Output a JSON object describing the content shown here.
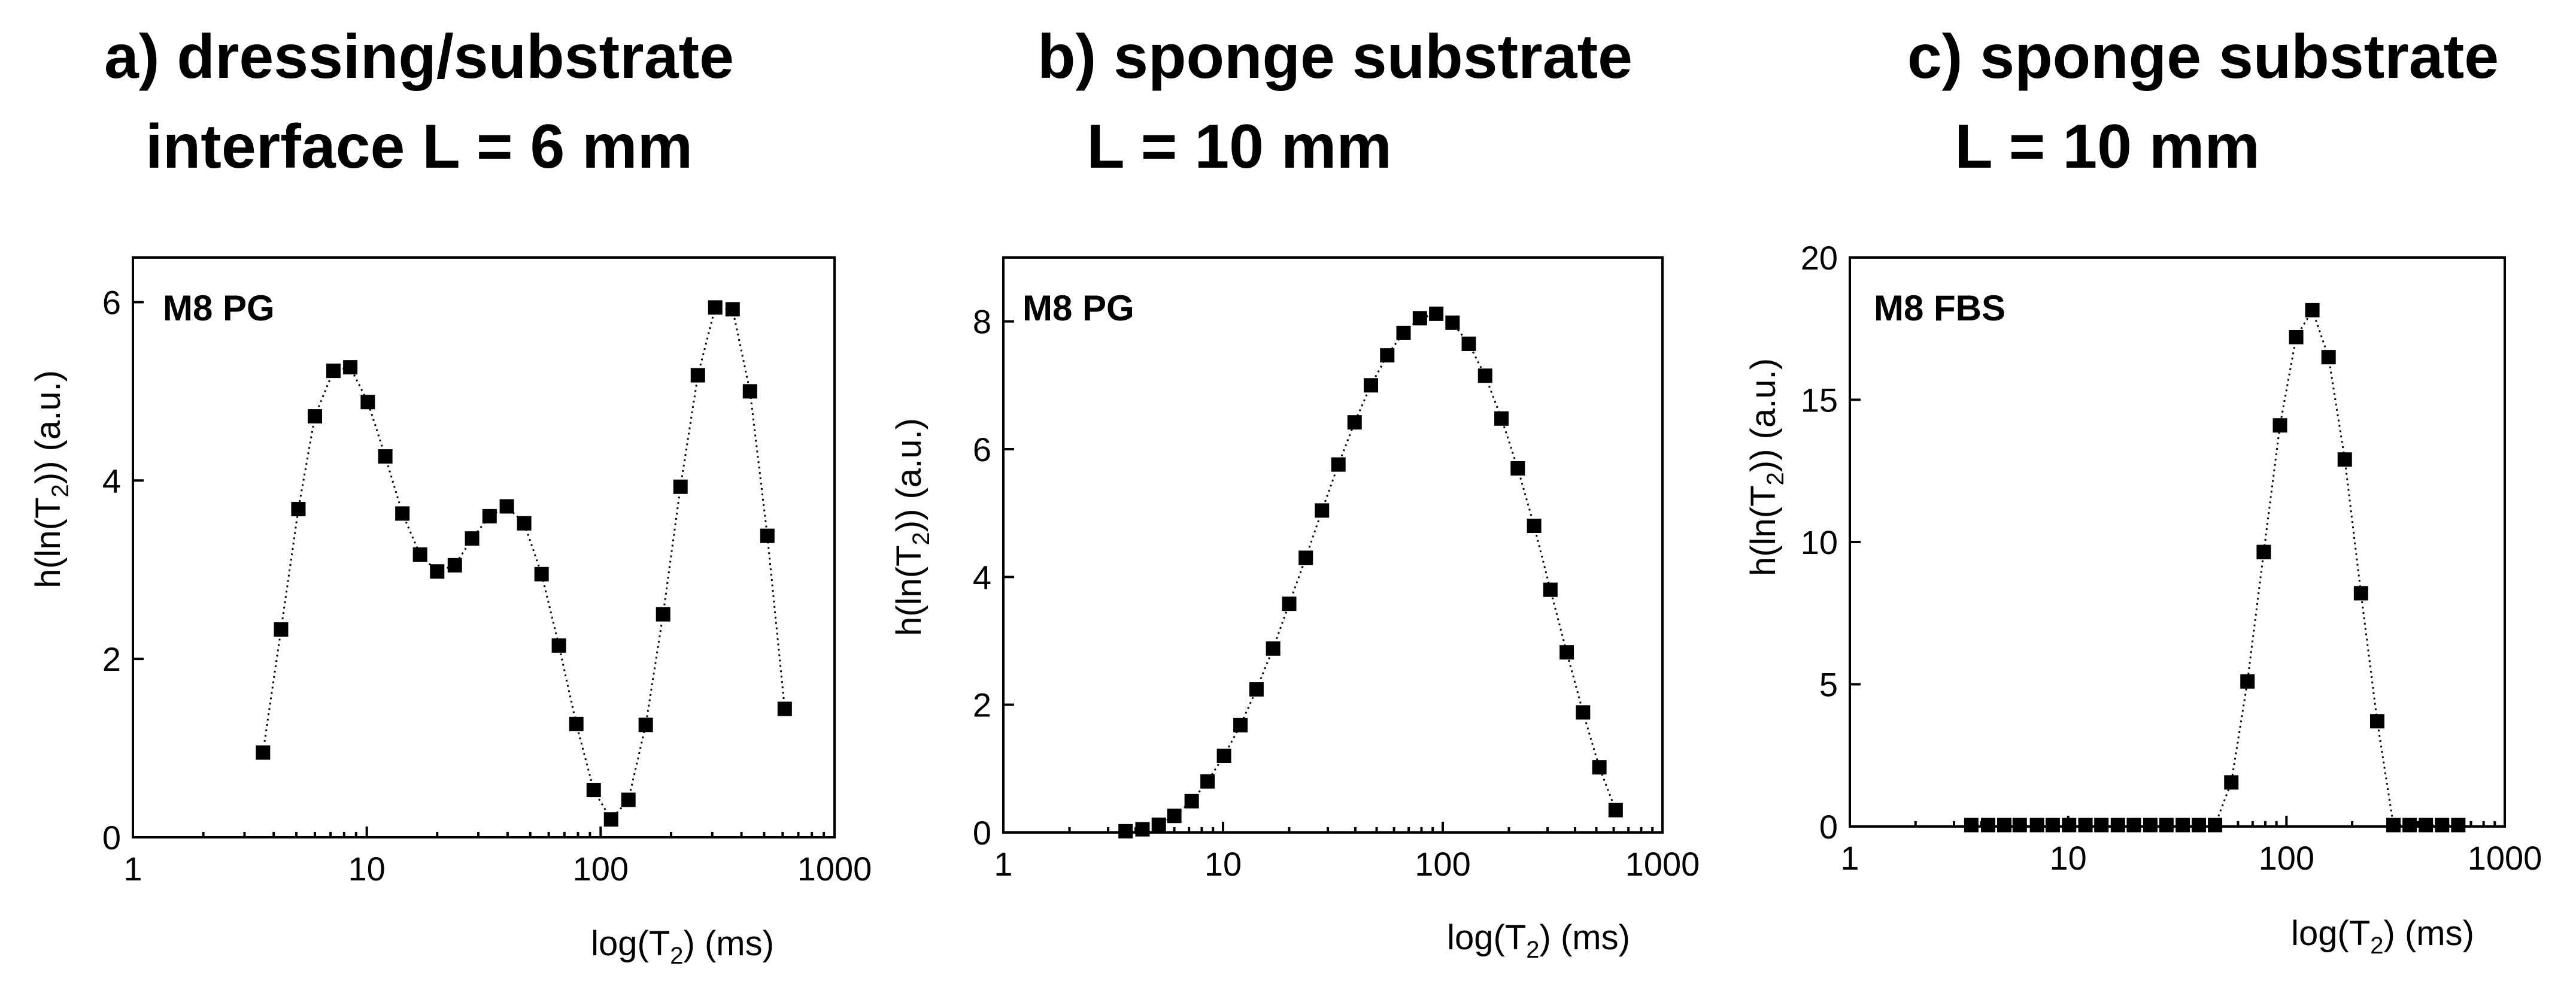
{
  "chart_data": [
    {
      "type": "scatter",
      "panel": "a",
      "title_lines": [
        "a) dressing/substrate",
        "interface L = 6 mm"
      ],
      "label": "M8 PG",
      "xlabel": "log(T₂) (ms)",
      "ylabel": "h(ln(T₂)) (a.u.)",
      "xscale": "log",
      "xlim": [
        1,
        1000
      ],
      "ylim": [
        0,
        6.5
      ],
      "xticks": [
        1,
        10,
        100,
        1000
      ],
      "xtick_labels": [
        "1",
        "10",
        "100",
        "1000"
      ],
      "yticks": [
        0,
        2,
        4,
        6
      ],
      "ytick_labels": [
        "0",
        "2",
        "4",
        "6"
      ],
      "x": [
        3.6,
        4.3,
        5.1,
        6.0,
        7.2,
        8.5,
        10.1,
        12.0,
        14.2,
        16.9,
        20.0,
        23.8,
        28.2,
        33.5,
        39.7,
        47.1,
        55.9,
        66.3,
        78.7,
        93.4,
        110.8,
        131.4,
        155.9,
        185.0,
        219.5,
        260.5,
        309.0,
        366.7,
        435.0,
        516.2,
        612.4
      ],
      "y": [
        0.95,
        2.33,
        3.68,
        4.72,
        5.23,
        5.27,
        4.88,
        4.27,
        3.63,
        3.17,
        2.98,
        3.05,
        3.35,
        3.6,
        3.71,
        3.52,
        2.95,
        2.15,
        1.27,
        0.53,
        0.2,
        0.42,
        1.26,
        2.5,
        3.93,
        5.18,
        5.94,
        5.92,
        5.0,
        3.38,
        1.44
      ]
    },
    {
      "type": "scatter",
      "panel": "b",
      "title_lines": [
        "b) sponge substrate",
        "L = 10 mm"
      ],
      "label": "M8 PG",
      "xlabel": "log(T₂) (ms)",
      "ylabel": "h(ln(T₂)) (a.u.)",
      "xscale": "log",
      "xlim": [
        1,
        1000
      ],
      "ylim": [
        0,
        9
      ],
      "xticks": [
        1,
        10,
        100,
        1000
      ],
      "xtick_labels": [
        "1",
        "10",
        "100",
        "1000"
      ],
      "yticks": [
        0,
        2,
        4,
        6,
        8
      ],
      "ytick_labels": [
        "0",
        "2",
        "4",
        "6",
        "8"
      ],
      "x": [
        3.6,
        4.3,
        5.1,
        6.0,
        7.2,
        8.5,
        10.1,
        12.0,
        14.2,
        16.9,
        20.0,
        23.8,
        28.2,
        33.5,
        39.7,
        47.1,
        55.9,
        66.3,
        78.7,
        93.4,
        110.8,
        131.4,
        155.9,
        185.0,
        219.5,
        260.5,
        309.0,
        366.7,
        435.0,
        516.2,
        612.4
      ],
      "y": [
        0.02,
        0.05,
        0.12,
        0.26,
        0.49,
        0.8,
        1.2,
        1.68,
        2.24,
        2.88,
        3.58,
        4.3,
        5.04,
        5.76,
        6.42,
        7.0,
        7.47,
        7.82,
        8.05,
        8.12,
        7.98,
        7.65,
        7.15,
        6.48,
        5.7,
        4.8,
        3.8,
        2.82,
        1.88,
        1.02,
        0.35
      ]
    },
    {
      "type": "scatter",
      "panel": "c",
      "title_lines": [
        "c) sponge substrate",
        "L = 10 mm"
      ],
      "label": "M8 FBS",
      "xlabel": "log(T₂) (ms)",
      "ylabel": "h(ln(T₂)) (a.u.)",
      "xscale": "log",
      "xlim": [
        1,
        1000
      ],
      "ylim": [
        0,
        20
      ],
      "xticks": [
        1,
        10,
        100,
        1000
      ],
      "xtick_labels": [
        "1",
        "10",
        "100",
        "1000"
      ],
      "yticks": [
        0,
        5,
        10,
        15,
        20
      ],
      "ytick_labels": [
        "0",
        "5",
        "10",
        "15",
        "20"
      ],
      "x": [
        3.6,
        4.3,
        5.1,
        6.0,
        7.2,
        8.5,
        10.1,
        12.0,
        14.2,
        16.9,
        20.0,
        23.8,
        28.2,
        33.5,
        39.7,
        47.1,
        55.9,
        66.3,
        78.7,
        93.4,
        110.8,
        131.4,
        155.9,
        185.0,
        219.5,
        260.5,
        309.0,
        366.7,
        435.0,
        516.2,
        612.4
      ],
      "y": [
        0.05,
        0.05,
        0.05,
        0.05,
        0.05,
        0.05,
        0.05,
        0.05,
        0.05,
        0.05,
        0.05,
        0.05,
        0.05,
        0.05,
        0.05,
        0.05,
        1.55,
        5.1,
        9.65,
        14.1,
        17.2,
        18.15,
        16.5,
        12.9,
        8.2,
        3.7,
        0.05,
        0.05,
        0.05,
        0.05,
        0.05
      ]
    }
  ]
}
